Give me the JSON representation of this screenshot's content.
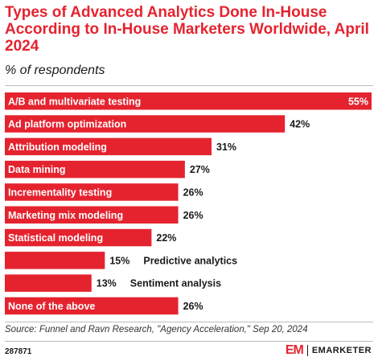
{
  "chart_data": {
    "type": "bar",
    "orientation": "horizontal",
    "title": "Types of Advanced Analytics Done In-House According to In-House Marketers Worldwide, April 2024",
    "subtitle": "% of respondents",
    "value_suffix": "%",
    "xlim": [
      0,
      55
    ],
    "bar_color": "#e5232f",
    "categories": [
      "A/B and multivariate testing",
      "Ad platform optimization",
      "Attribution modeling",
      "Data mining",
      "Incrementality testing",
      "Marketing mix modeling",
      "Statistical modeling",
      "Predictive analytics",
      "Sentiment analysis",
      "None of the above"
    ],
    "values": [
      55,
      42,
      31,
      27,
      26,
      26,
      22,
      15,
      13,
      26
    ]
  },
  "footer": {
    "source": "Source: Funnel and Ravn Research, \"Agency Acceleration,\" Sep 20, 2024",
    "chart_id": "287871",
    "brand_mark": "EM",
    "brand_name": "EMARKETER"
  }
}
